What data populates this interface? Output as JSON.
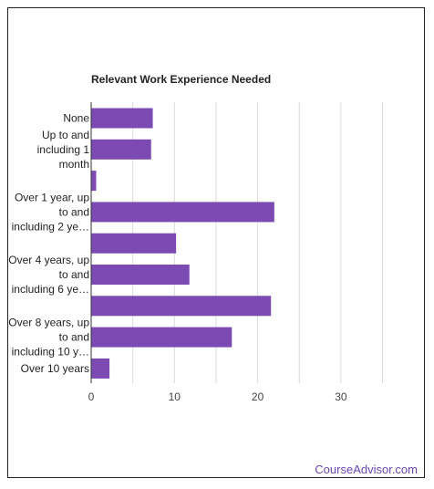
{
  "brand": {
    "name": "CourseAdvisor.com"
  },
  "colors": {
    "bar": "#7b4bb3",
    "grid": "#d9d9d9",
    "axis": "#333333"
  },
  "chart_data": {
    "type": "bar",
    "orientation": "horizontal",
    "title": "Relevant Work Experience Needed",
    "xlabel": "",
    "ylabel": "",
    "xlim": [
      0,
      30
    ],
    "xticks": [
      0,
      10,
      20,
      30
    ],
    "grid": true,
    "legend": "none",
    "categories": [
      "None",
      "Up to and including 1 month",
      "",
      "Over 1 year, up to and including 2 ye…",
      "",
      "Over 4 years, up to and including 6 ye…",
      "",
      "Over 8 years, up to and including 10 y…",
      "Over 10 years"
    ],
    "category_lines": [
      [
        "None"
      ],
      [
        "Up to and",
        "including 1",
        "month"
      ],
      [],
      [
        "Over 1 year, up",
        "to and",
        "including 2 ye…"
      ],
      [],
      [
        "Over 4 years, up",
        "to and",
        "including 6 ye…"
      ],
      [],
      [
        "Over 8 years, up",
        "to and",
        "including 10 y…"
      ],
      [
        "Over 10 years"
      ]
    ],
    "values": [
      7.4,
      7.2,
      0.6,
      22.0,
      10.2,
      11.8,
      21.6,
      16.9,
      2.2
    ]
  }
}
